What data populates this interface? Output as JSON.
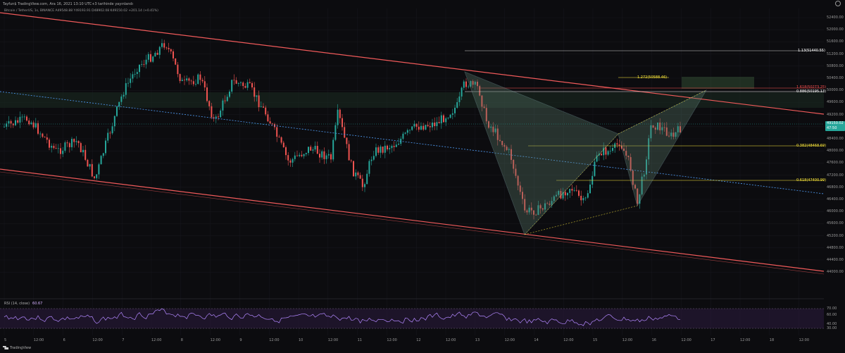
{
  "header": {
    "text": "Tayfun$ TradingView.com, Ara 16, 2021 13:10 UTC+3 tarihinde yayınlandı"
  },
  "symbol": {
    "text": "Bitcoin / TetherUS, 1s, BINANCE  A49548.88 Y49193.91 D48902.08 K49150.02 +201.14 (+0.41%)"
  },
  "price_axis": {
    "ticks": [
      "52400.00",
      "52000.00",
      "51600.00",
      "51200.00",
      "50800.00",
      "50400.00",
      "50000.00",
      "49600.00",
      "49200.00",
      "48800.00",
      "48400.00",
      "48000.00",
      "47600.00",
      "47200.00",
      "46800.00",
      "46400.00",
      "46000.00",
      "45600.00",
      "45200.00",
      "44800.00",
      "44400.00",
      "44000.00"
    ],
    "current_price": "49150.02",
    "current_sub": "47:50"
  },
  "rsi_axis": {
    "ticks": [
      "70.00",
      "60.00",
      "40.00",
      "30.00"
    ]
  },
  "fib_levels": [
    {
      "label": "1.13(51440.55)",
      "color": "#ffffff"
    },
    {
      "label": "1.272(50588.46)",
      "color": "#ffeb3b"
    },
    {
      "label": "1.618(50273.25)",
      "color": "#ff5252"
    },
    {
      "label": "0.886(50195.13)",
      "color": "#ffffff"
    },
    {
      "label": "0.382(48468.69)",
      "color": "#ffeb3b"
    },
    {
      "label": "0.618(47400.99)",
      "color": "#ffeb3b"
    }
  ],
  "time_axis": {
    "labels": [
      "5",
      "12:00",
      "6",
      "12:00",
      "7",
      "12:00",
      "8",
      "12:00",
      "9",
      "12:00",
      "10",
      "12:00",
      "11",
      "12:00",
      "12",
      "12:00",
      "13",
      "12:00",
      "14",
      "12:00",
      "15",
      "12:00",
      "16",
      "12:00",
      "17",
      "12:00",
      "18",
      "12:00"
    ]
  },
  "rsi": {
    "label": "RSI (14, close)",
    "value": "60.67"
  },
  "footer": {
    "brand": "TradingView"
  },
  "colors": {
    "bull": "#26a69a",
    "bear": "#ef5350",
    "channel": "#f05a5a",
    "midline": "#4a90e2",
    "pattern": "#8fbcbc",
    "rsi": "#b388ff"
  }
}
